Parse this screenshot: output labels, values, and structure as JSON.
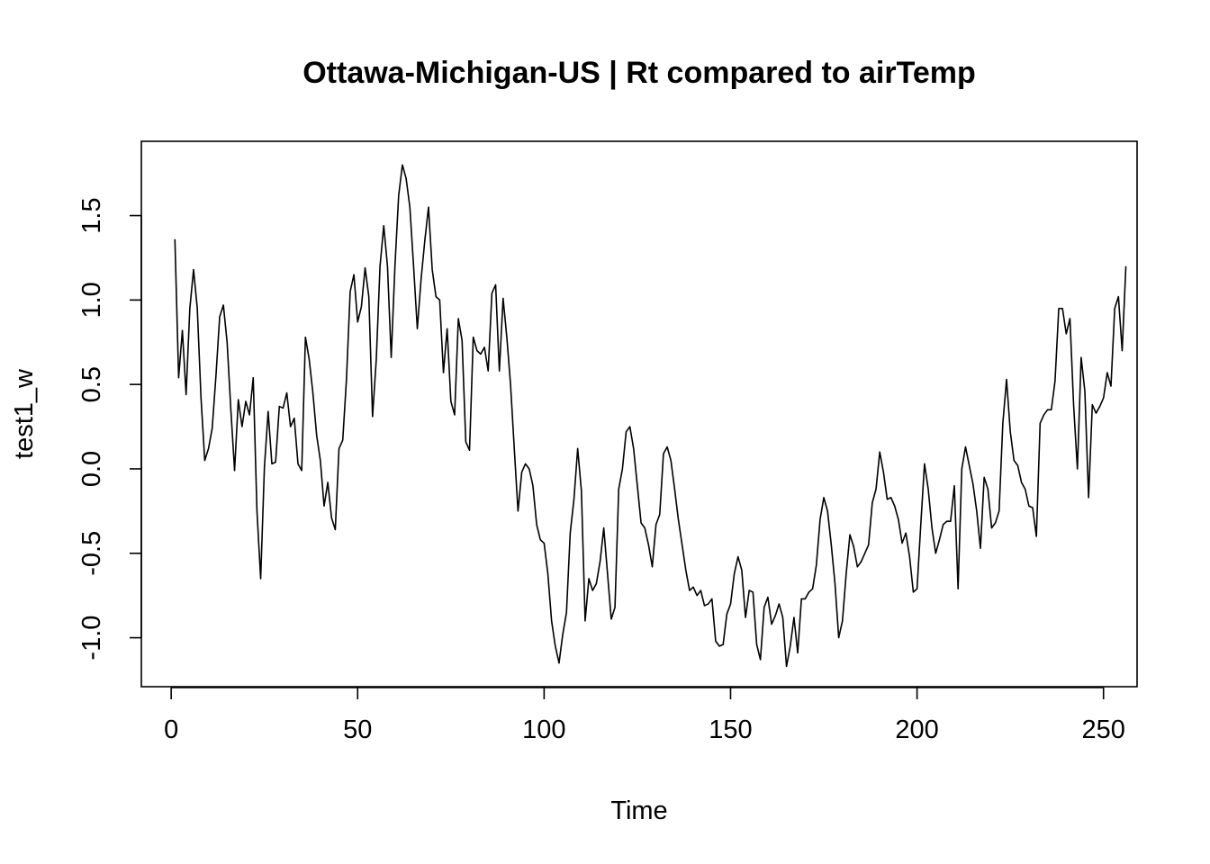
{
  "chart_data": {
    "type": "line",
    "title": "Ottawa-Michigan-US | Rt compared to airTemp",
    "xlabel": "Time",
    "ylabel": "test1_w",
    "xlim": [
      -8,
      259
    ],
    "ylim": [
      -1.29,
      1.94
    ],
    "xticks": [
      0,
      50,
      100,
      150,
      200,
      250
    ],
    "yticks": [
      -1.0,
      -0.5,
      0.0,
      0.5,
      1.0,
      1.5
    ],
    "ytick_labels": [
      "-1.0",
      "-0.5",
      "0.0",
      "0.5",
      "1.0",
      "1.5"
    ],
    "grid": false,
    "legend": "none",
    "color": "#000000",
    "series": [
      {
        "x_start": 1,
        "values": [
          1.36,
          0.54,
          0.82,
          0.44,
          0.95,
          1.18,
          0.95,
          0.42,
          0.05,
          0.12,
          0.24,
          0.55,
          0.9,
          0.97,
          0.75,
          0.35,
          -0.01,
          0.41,
          0.25,
          0.4,
          0.32,
          0.54,
          -0.25,
          -0.65,
          0.01,
          0.34,
          0.03,
          0.04,
          0.37,
          0.36,
          0.45,
          0.25,
          0.3,
          0.03,
          -0.01,
          0.78,
          0.65,
          0.45,
          0.2,
          0.05,
          -0.22,
          -0.08,
          -0.29,
          -0.36,
          0.12,
          0.17,
          0.53,
          1.05,
          1.15,
          0.87,
          0.96,
          1.19,
          1.02,
          0.31,
          0.65,
          1.2,
          1.44,
          1.2,
          0.66,
          1.2,
          1.62,
          1.8,
          1.72,
          1.55,
          1.2,
          0.83,
          1.12,
          1.35,
          1.55,
          1.18,
          1.02,
          1.0,
          0.57,
          0.83,
          0.4,
          0.32,
          0.89,
          0.76,
          0.16,
          0.11,
          0.78,
          0.7,
          0.68,
          0.72,
          0.58,
          1.04,
          1.09,
          0.58,
          1.01,
          0.78,
          0.5,
          0.12,
          -0.25,
          -0.02,
          0.03,
          0.0,
          -0.1,
          -0.33,
          -0.42,
          -0.44,
          -0.62,
          -0.9,
          -1.05,
          -1.15,
          -0.98,
          -0.85,
          -0.38,
          -0.18,
          0.12,
          -0.13,
          -0.9,
          -0.65,
          -0.72,
          -0.68,
          -0.55,
          -0.35,
          -0.62,
          -0.89,
          -0.82,
          -0.12,
          0.0,
          0.22,
          0.25,
          0.12,
          -0.1,
          -0.32,
          -0.35,
          -0.45,
          -0.58,
          -0.33,
          -0.27,
          0.09,
          0.13,
          0.05,
          -0.12,
          -0.3,
          -0.45,
          -0.6,
          -0.72,
          -0.7,
          -0.75,
          -0.72,
          -0.81,
          -0.8,
          -0.77,
          -1.02,
          -1.05,
          -1.04,
          -0.86,
          -0.8,
          -0.62,
          -0.52,
          -0.6,
          -0.88,
          -0.72,
          -0.73,
          -1.04,
          -1.13,
          -0.82,
          -0.76,
          -0.92,
          -0.87,
          -0.8,
          -0.88,
          -1.17,
          -1.05,
          -0.88,
          -1.09,
          -0.77,
          -0.77,
          -0.73,
          -0.71,
          -0.57,
          -0.3,
          -0.17,
          -0.25,
          -0.45,
          -0.68,
          -1.0,
          -0.9,
          -0.62,
          -0.39,
          -0.46,
          -0.58,
          -0.55,
          -0.5,
          -0.45,
          -0.2,
          -0.12,
          0.1,
          -0.02,
          -0.18,
          -0.17,
          -0.22,
          -0.3,
          -0.44,
          -0.38,
          -0.52,
          -0.73,
          -0.71,
          -0.33,
          0.03,
          -0.12,
          -0.35,
          -0.5,
          -0.42,
          -0.33,
          -0.31,
          -0.31,
          -0.1,
          -0.71,
          0.0,
          0.13,
          0.02,
          -0.09,
          -0.25,
          -0.47,
          -0.05,
          -0.12,
          -0.35,
          -0.32,
          -0.25,
          0.27,
          0.53,
          0.22,
          0.05,
          0.02,
          -0.08,
          -0.12,
          -0.22,
          -0.23,
          -0.4,
          0.27,
          0.32,
          0.35,
          0.35,
          0.52,
          0.95,
          0.95,
          0.8,
          0.89,
          0.37,
          0.0,
          0.66,
          0.46,
          -0.17,
          0.38,
          0.33,
          0.37,
          0.42,
          0.57,
          0.49,
          0.95,
          1.02,
          0.7,
          1.2
        ]
      }
    ]
  }
}
